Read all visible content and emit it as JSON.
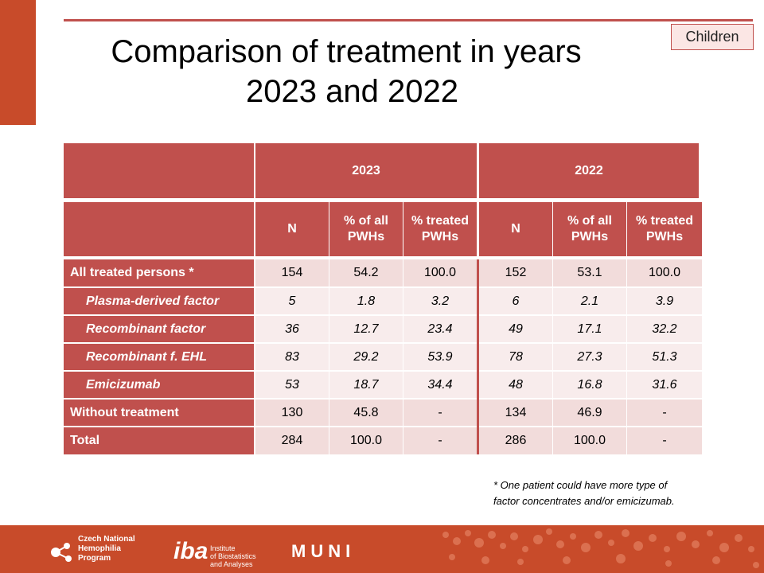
{
  "slide": {
    "title_line1": "Comparison of treatment in years",
    "title_line2": "2023 and 2022",
    "badge": "Children",
    "accent_color": "#c84b2a",
    "header_color": "#c0504d"
  },
  "table": {
    "years": [
      "2023",
      "2022"
    ],
    "subheaders": [
      "N",
      "% of all\nPWHs",
      "% treated\nPWHs",
      "N",
      "% of all\nPWHs",
      "% treated\nPWHs"
    ],
    "rows": [
      {
        "label": "All treated persons  *",
        "values": [
          "154",
          "54.2",
          "100.0",
          "152",
          "53.1",
          "100.0"
        ]
      },
      {
        "label": "Plasma-derived  factor",
        "values": [
          "5",
          "1.8",
          "3.2",
          "6",
          "2.1",
          "3.9"
        ]
      },
      {
        "label": "Recombinant factor",
        "values": [
          "36",
          "12.7",
          "23.4",
          "49",
          "17.1",
          "32.2"
        ]
      },
      {
        "label": "Recombinant f. EHL",
        "values": [
          "83",
          "29.2",
          "53.9",
          "78",
          "27.3",
          "51.3"
        ]
      },
      {
        "label": "Emicizumab",
        "values": [
          "53",
          "18.7",
          "34.4",
          "48",
          "16.8",
          "31.6"
        ]
      },
      {
        "label": "Without treatment",
        "values": [
          "130",
          "45.8",
          "-",
          "134",
          "46.9",
          "-"
        ]
      },
      {
        "label": "Total",
        "values": [
          "284",
          "100.0",
          "-",
          "286",
          "100.0",
          "-"
        ]
      }
    ]
  },
  "footnote": {
    "line1": "* One patient could have more type of",
    "line2": "factor concentrates and/or emicizumab."
  },
  "footer": {
    "logo1_line1": "Czech National",
    "logo1_line2": "Hemophilia",
    "logo1_line3": "Program",
    "logo2_mark": "iba",
    "logo2_line1": "Institute",
    "logo2_line2": "of Biostatistics",
    "logo2_line3": "and Analyses",
    "logo3": "MUNI"
  }
}
